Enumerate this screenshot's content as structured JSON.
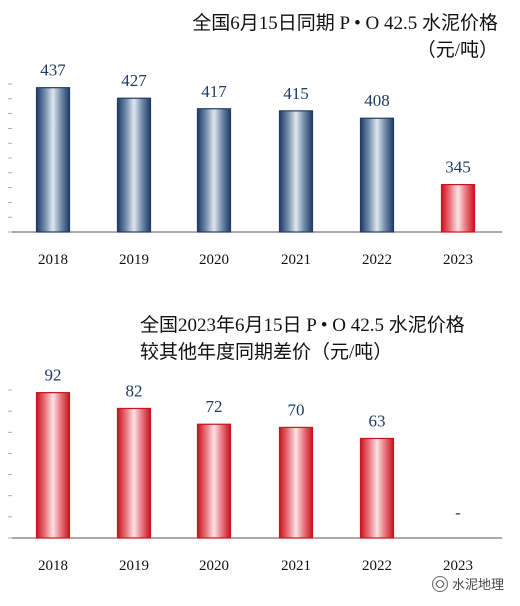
{
  "chart_data": [
    {
      "type": "bar",
      "title_lines": [
        "全国6月15日同期 P • O 42.5 水泥价格",
        "（元/吨）"
      ],
      "categories": [
        "2018",
        "2019",
        "2020",
        "2021",
        "2022",
        "2023"
      ],
      "values": [
        437,
        427,
        417,
        415,
        408,
        345
      ],
      "value_labels": [
        "437",
        "427",
        "417",
        "415",
        "408",
        "345"
      ],
      "ylim": [
        300,
        450
      ],
      "grid": false,
      "bar_colors": [
        "#1f3b66",
        "#1f3b66",
        "#1f3b66",
        "#1f3b66",
        "#1f3b66",
        "#c8141e"
      ],
      "label_color": "#1f3b66"
    },
    {
      "type": "bar",
      "title_lines": [
        "全国2023年6月15日 P • O 42.5 水泥价格",
        "较其他年度同期差价（元/吨）"
      ],
      "categories": [
        "2018",
        "2019",
        "2020",
        "2021",
        "2022",
        "2023"
      ],
      "values": [
        92,
        82,
        72,
        70,
        63,
        null
      ],
      "value_labels": [
        "92",
        "82",
        "72",
        "70",
        "63",
        "-"
      ],
      "ylim": [
        0,
        100
      ],
      "grid": false,
      "bar_colors": [
        "#c8141e",
        "#c8141e",
        "#c8141e",
        "#c8141e",
        "#c8141e",
        "#c8141e"
      ],
      "label_color": "#1f3b66"
    }
  ],
  "watermark": {
    "text": "水泥地理",
    "icon": "wechat-channel-icon"
  }
}
